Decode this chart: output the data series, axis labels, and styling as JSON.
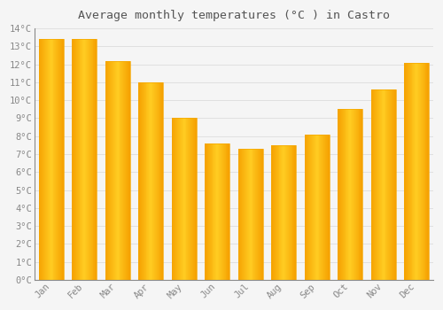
{
  "title": "Average monthly temperatures (°C ) in Castro",
  "months": [
    "Jan",
    "Feb",
    "Mar",
    "Apr",
    "May",
    "Jun",
    "Jul",
    "Aug",
    "Sep",
    "Oct",
    "Nov",
    "Dec"
  ],
  "values": [
    13.4,
    13.4,
    12.2,
    11.0,
    9.0,
    7.6,
    7.3,
    7.5,
    8.1,
    9.5,
    10.6,
    12.1
  ],
  "bar_color_center": "#FFC825",
  "bar_color_edge": "#F5A800",
  "background_color": "#F5F5F5",
  "plot_background": "#F5F5F5",
  "grid_color": "#DDDDDD",
  "ylim": [
    0,
    14
  ],
  "yticks": [
    0,
    1,
    2,
    3,
    4,
    5,
    6,
    7,
    8,
    9,
    10,
    11,
    12,
    13,
    14
  ],
  "title_fontsize": 9.5,
  "tick_fontsize": 7.5,
  "title_color": "#555555",
  "tick_color": "#888888",
  "axis_color": "#888888",
  "bar_width": 0.75
}
